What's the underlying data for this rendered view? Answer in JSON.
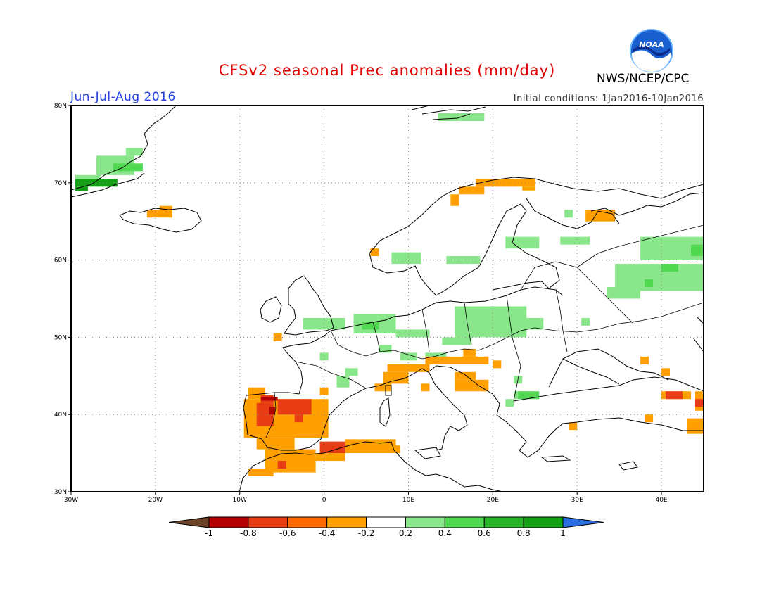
{
  "header": {
    "title": "CFSv2 seasonal Prec anomalies (mm/day)",
    "period": "Jun-Jul-Aug 2016",
    "initial_conditions": "Initial conditions: 1Jan2016-10Jan2016",
    "agency": "NWS/NCEP/CPC",
    "logo_text": "NOAA"
  },
  "map": {
    "lon_range": [
      -30,
      45
    ],
    "lat_range": [
      30,
      80
    ],
    "lon_ticks": [
      {
        "value": -30,
        "label": "30W"
      },
      {
        "value": -20,
        "label": "20W"
      },
      {
        "value": -10,
        "label": "10W"
      },
      {
        "value": 0,
        "label": "0"
      },
      {
        "value": 10,
        "label": "10E"
      },
      {
        "value": 20,
        "label": "20E"
      },
      {
        "value": 30,
        "label": "30E"
      },
      {
        "value": 40,
        "label": "40E"
      }
    ],
    "lat_ticks": [
      {
        "value": 30,
        "label": "30N"
      },
      {
        "value": 40,
        "label": "40N"
      },
      {
        "value": 50,
        "label": "50N"
      },
      {
        "value": 60,
        "label": "60N"
      },
      {
        "value": 70,
        "label": "70N"
      },
      {
        "value": 80,
        "label": "80N"
      }
    ],
    "grid": "dotted"
  },
  "colorbar": {
    "labels": [
      "-1",
      "-0.8",
      "-0.6",
      "-0.4",
      "-0.2",
      "0.2",
      "0.4",
      "0.6",
      "0.8",
      "1"
    ],
    "colors": [
      "#6b4226",
      "#b40000",
      "#e83c14",
      "#ff6a00",
      "#ffa000",
      "#ffffff",
      "#8ae68a",
      "#50d850",
      "#28b428",
      "#14a014",
      "#2a6ee0"
    ]
  },
  "anomaly_cells": [
    {
      "lon": -29.5,
      "lat": 69.5,
      "lon2": -24.5,
      "lat2": 70.5,
      "cls": "g3"
    },
    {
      "lon": -29.5,
      "lat": 68.9,
      "lon2": -28.0,
      "lat2": 69.5,
      "cls": "g3"
    },
    {
      "lon": -29.5,
      "lat": 70.5,
      "lon2": -26.5,
      "lat2": 71.0,
      "cls": "g1"
    },
    {
      "lon": -27.0,
      "lat": 71.0,
      "lon2": -22.5,
      "lat2": 73.5,
      "cls": "g1"
    },
    {
      "lon": -25.0,
      "lat": 71.5,
      "lon2": -21.5,
      "lat2": 72.5,
      "cls": "g2"
    },
    {
      "lon": -23.5,
      "lat": 73.5,
      "lon2": -21.5,
      "lat2": 74.5,
      "cls": "g1"
    },
    {
      "lon": -21.0,
      "lat": 65.5,
      "lon2": -18.0,
      "lat2": 66.5,
      "cls": "o"
    },
    {
      "lon": -19.5,
      "lat": 66.5,
      "lon2": -18.0,
      "lat2": 67.0,
      "cls": "o"
    },
    {
      "lon": 13.5,
      "lat": 78.0,
      "lon2": 19.0,
      "lat2": 79.0,
      "cls": "g1"
    },
    {
      "lon": 16.0,
      "lat": 68.5,
      "lon2": 19.0,
      "lat2": 69.5,
      "cls": "o"
    },
    {
      "lon": 18.0,
      "lat": 69.5,
      "lon2": 25.0,
      "lat2": 70.5,
      "cls": "o"
    },
    {
      "lon": 23.5,
      "lat": 69.0,
      "lon2": 25.0,
      "lat2": 69.5,
      "cls": "o"
    },
    {
      "lon": 15.0,
      "lat": 67.0,
      "lon2": 16.0,
      "lat2": 68.5,
      "cls": "o"
    },
    {
      "lon": 31.0,
      "lat": 65.0,
      "lon2": 34.5,
      "lat2": 66.5,
      "cls": "o"
    },
    {
      "lon": 5.5,
      "lat": 60.5,
      "lon2": 6.5,
      "lat2": 61.5,
      "cls": "o"
    },
    {
      "lon": 21.5,
      "lat": 61.5,
      "lon2": 25.5,
      "lat2": 63.0,
      "cls": "g1"
    },
    {
      "lon": 8.0,
      "lat": 59.5,
      "lon2": 11.5,
      "lat2": 61.0,
      "cls": "g1"
    },
    {
      "lon": 14.5,
      "lat": 59.5,
      "lon2": 18.5,
      "lat2": 60.5,
      "cls": "g1"
    },
    {
      "lon": 28.0,
      "lat": 62.0,
      "lon2": 31.5,
      "lat2": 63.0,
      "cls": "g1"
    },
    {
      "lon": 28.5,
      "lat": 65.5,
      "lon2": 29.5,
      "lat2": 66.5,
      "cls": "g1"
    },
    {
      "lon": 37.5,
      "lat": 60.0,
      "lon2": 45.0,
      "lat2": 63.0,
      "cls": "g1"
    },
    {
      "lon": 34.5,
      "lat": 56.0,
      "lon2": 45.0,
      "lat2": 59.5,
      "cls": "g1"
    },
    {
      "lon": 33.5,
      "lat": 55.0,
      "lon2": 37.5,
      "lat2": 56.5,
      "cls": "g1"
    },
    {
      "lon": 40.0,
      "lat": 58.5,
      "lon2": 42.0,
      "lat2": 59.5,
      "cls": "g2"
    },
    {
      "lon": 43.5,
      "lat": 60.5,
      "lon2": 45.0,
      "lat2": 62.0,
      "cls": "g2"
    },
    {
      "lon": 38.0,
      "lat": 56.5,
      "lon2": 39.0,
      "lat2": 57.5,
      "cls": "g2"
    },
    {
      "lon": -2.5,
      "lat": 51.0,
      "lon2": 2.5,
      "lat2": 52.5,
      "cls": "g1"
    },
    {
      "lon": 3.5,
      "lat": 50.5,
      "lon2": 8.5,
      "lat2": 53.0,
      "cls": "g1"
    },
    {
      "lon": 4.5,
      "lat": 51.0,
      "lon2": 6.5,
      "lat2": 52.0,
      "cls": "g2"
    },
    {
      "lon": 8.5,
      "lat": 50.0,
      "lon2": 12.5,
      "lat2": 51.0,
      "cls": "g1"
    },
    {
      "lon": 15.5,
      "lat": 50.0,
      "lon2": 24.0,
      "lat2": 54.0,
      "cls": "g1"
    },
    {
      "lon": 14.0,
      "lat": 49.0,
      "lon2": 17.5,
      "lat2": 50.0,
      "cls": "g1"
    },
    {
      "lon": 23.5,
      "lat": 51.0,
      "lon2": 26.0,
      "lat2": 52.5,
      "cls": "g1"
    },
    {
      "lon": 30.5,
      "lat": 51.5,
      "lon2": 31.5,
      "lat2": 52.5,
      "cls": "g1"
    },
    {
      "lon": 6.5,
      "lat": 48.0,
      "lon2": 8.0,
      "lat2": 49.0,
      "cls": "g1"
    },
    {
      "lon": 9.0,
      "lat": 47.0,
      "lon2": 11.0,
      "lat2": 48.0,
      "cls": "g1"
    },
    {
      "lon": 12.0,
      "lat": 47.0,
      "lon2": 14.5,
      "lat2": 48.0,
      "cls": "g1"
    },
    {
      "lon": -0.5,
      "lat": 47.0,
      "lon2": 0.5,
      "lat2": 48.0,
      "cls": "g1"
    },
    {
      "lon": 2.5,
      "lat": 45.0,
      "lon2": 4.0,
      "lat2": 46.0,
      "cls": "g1"
    },
    {
      "lon": 1.5,
      "lat": 43.5,
      "lon2": 3.0,
      "lat2": 45.0,
      "cls": "g1"
    },
    {
      "lon": 22.5,
      "lat": 44.0,
      "lon2": 23.5,
      "lat2": 45.0,
      "cls": "g1"
    },
    {
      "lon": 22.5,
      "lat": 42.0,
      "lon2": 24.0,
      "lat2": 43.0,
      "cls": "g1"
    },
    {
      "lon": 23.0,
      "lat": 42.0,
      "lon2": 25.5,
      "lat2": 43.0,
      "cls": "g2"
    },
    {
      "lon": 21.5,
      "lat": 41.0,
      "lon2": 22.5,
      "lat2": 42.0,
      "cls": "g1"
    },
    {
      "lon": -6.0,
      "lat": 49.5,
      "lon2": -5.0,
      "lat2": 50.5,
      "cls": "o"
    },
    {
      "lon": 16.5,
      "lat": 47.5,
      "lon2": 18.0,
      "lat2": 48.5,
      "cls": "o"
    },
    {
      "lon": 12.0,
      "lat": 46.5,
      "lon2": 19.5,
      "lat2": 47.5,
      "cls": "o"
    },
    {
      "lon": 7.5,
      "lat": 45.5,
      "lon2": 12.5,
      "lat2": 46.5,
      "cls": "o"
    },
    {
      "lon": 7.0,
      "lat": 44.0,
      "lon2": 10.0,
      "lat2": 45.5,
      "cls": "o"
    },
    {
      "lon": 6.0,
      "lat": 43.0,
      "lon2": 8.0,
      "lat2": 44.0,
      "cls": "o"
    },
    {
      "lon": 11.5,
      "lat": 43.0,
      "lon2": 12.5,
      "lat2": 44.0,
      "cls": "o"
    },
    {
      "lon": 15.5,
      "lat": 43.0,
      "lon2": 19.5,
      "lat2": 44.5,
      "cls": "o"
    },
    {
      "lon": 15.5,
      "lat": 44.5,
      "lon2": 18.0,
      "lat2": 45.5,
      "cls": "o"
    },
    {
      "lon": 20.0,
      "lat": 46.0,
      "lon2": 21.0,
      "lat2": 47.0,
      "cls": "o"
    },
    {
      "lon": -9.5,
      "lat": 37.0,
      "lon2": 0.5,
      "lat2": 42.0,
      "cls": "o"
    },
    {
      "lon": -9.0,
      "lat": 42.0,
      "lon2": -7.0,
      "lat2": 43.5,
      "cls": "o"
    },
    {
      "lon": -0.5,
      "lat": 42.5,
      "lon2": 0.5,
      "lat2": 43.5,
      "cls": "o"
    },
    {
      "lon": -8.0,
      "lat": 35.5,
      "lon2": -3.5,
      "lat2": 37.0,
      "cls": "o"
    },
    {
      "lon": -7.0,
      "lat": 32.5,
      "lon2": -1.0,
      "lat2": 35.5,
      "cls": "o"
    },
    {
      "lon": -9.0,
      "lat": 32.0,
      "lon2": -6.0,
      "lat2": 33.0,
      "cls": "o"
    },
    {
      "lon": -1.0,
      "lat": 34.0,
      "lon2": 2.5,
      "lat2": 35.0,
      "cls": "o"
    },
    {
      "lon": 2.5,
      "lat": 35.0,
      "lon2": 8.5,
      "lat2": 36.8,
      "cls": "o"
    },
    {
      "lon": 8.5,
      "lat": 35.0,
      "lon2": 9.0,
      "lat2": 36.0,
      "cls": "o"
    },
    {
      "lon": 29.0,
      "lat": 38.0,
      "lon2": 30.0,
      "lat2": 39.0,
      "cls": "o"
    },
    {
      "lon": 38.0,
      "lat": 39.0,
      "lon2": 39.0,
      "lat2": 40.0,
      "cls": "o"
    },
    {
      "lon": 37.5,
      "lat": 46.5,
      "lon2": 38.5,
      "lat2": 47.5,
      "cls": "o"
    },
    {
      "lon": 40.0,
      "lat": 45.0,
      "lon2": 41.0,
      "lat2": 46.0,
      "cls": "o"
    },
    {
      "lon": 40.0,
      "lat": 42.0,
      "lon2": 43.5,
      "lat2": 43.0,
      "cls": "o"
    },
    {
      "lon": 44.0,
      "lat": 40.5,
      "lon2": 45.0,
      "lat2": 43.0,
      "cls": "o"
    },
    {
      "lon": 43.0,
      "lat": 37.5,
      "lon2": 45.0,
      "lat2": 39.5,
      "cls": "o"
    },
    {
      "lon": -7.5,
      "lat": 41.5,
      "lon2": -6.0,
      "lat2": 42.5,
      "cls": "r"
    },
    {
      "lon": -8.0,
      "lat": 38.5,
      "lon2": -6.0,
      "lat2": 41.5,
      "cls": "r"
    },
    {
      "lon": -5.5,
      "lat": 40.0,
      "lon2": -1.5,
      "lat2": 42.0,
      "cls": "r"
    },
    {
      "lon": -3.5,
      "lat": 39.0,
      "lon2": -2.5,
      "lat2": 40.0,
      "cls": "r"
    },
    {
      "lon": -5.5,
      "lat": 33.0,
      "lon2": -4.5,
      "lat2": 34.0,
      "cls": "r"
    },
    {
      "lon": -0.5,
      "lat": 35.0,
      "lon2": 2.5,
      "lat2": 36.5,
      "cls": "r"
    },
    {
      "lon": 40.5,
      "lat": 42.0,
      "lon2": 42.5,
      "lat2": 43.0,
      "cls": "r"
    },
    {
      "lon": 44.0,
      "lat": 41.0,
      "lon2": 45.0,
      "lat2": 42.0,
      "cls": "r"
    },
    {
      "lon": -7.5,
      "lat": 41.8,
      "lon2": -5.5,
      "lat2": 42.3,
      "cls": "dr"
    },
    {
      "lon": -6.5,
      "lat": 40.0,
      "lon2": -5.8,
      "lat2": 41.0,
      "cls": "dr"
    }
  ]
}
